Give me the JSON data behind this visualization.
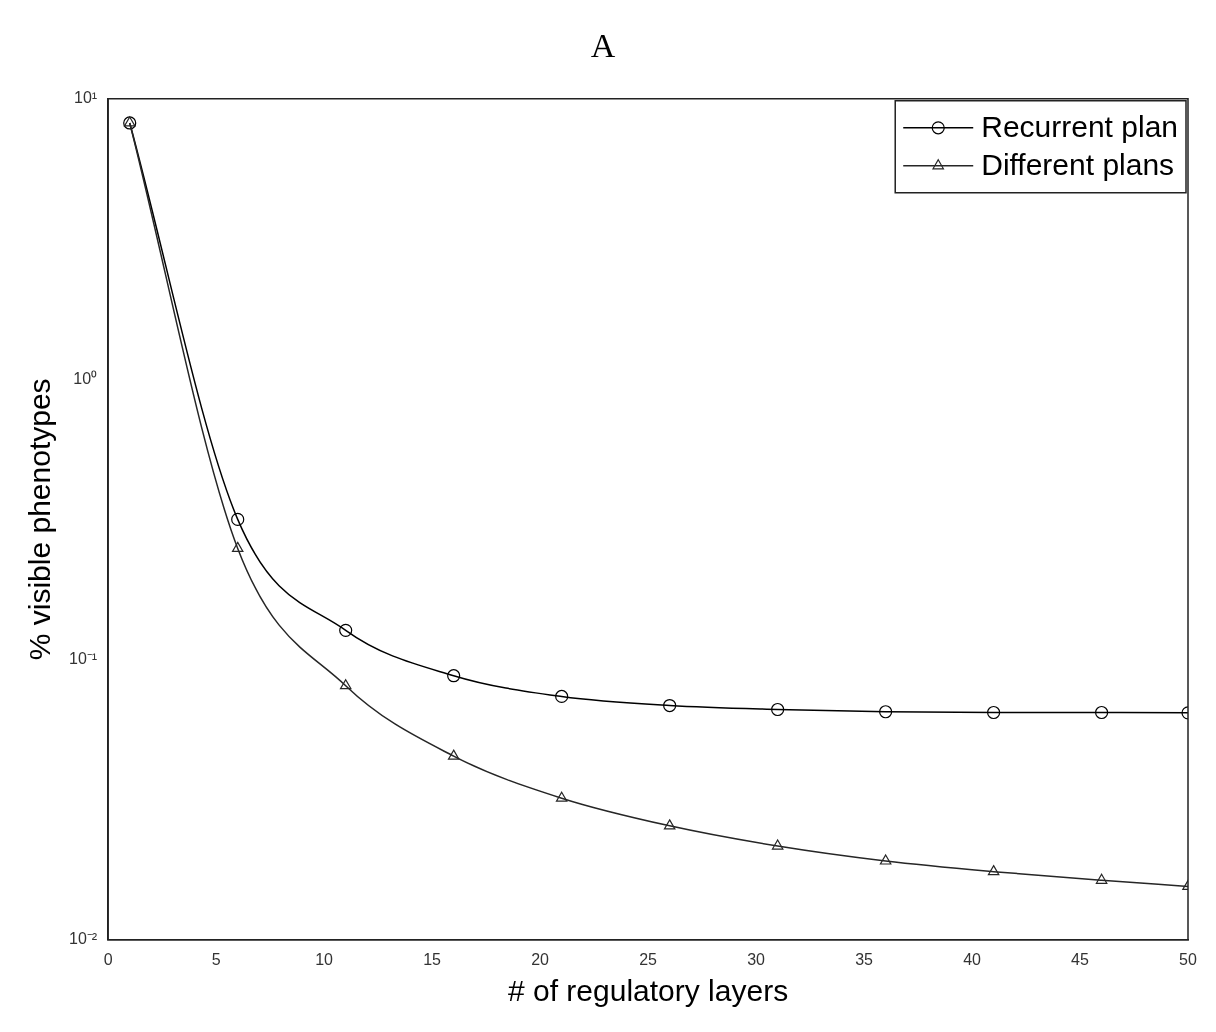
{
  "chart_data": {
    "type": "line",
    "title": "A",
    "xlabel": "# of regulatory layers",
    "ylabel": "% visible phenotypes",
    "x": [
      1,
      6,
      11,
      16,
      21,
      26,
      31,
      36,
      41,
      46,
      50
    ],
    "series": [
      {
        "name": "Recurrent plan",
        "color": "#000000",
        "marker": "circle",
        "values": [
          8.2,
          0.316,
          0.127,
          0.0875,
          0.0738,
          0.0685,
          0.0663,
          0.0651,
          0.0647,
          0.0647,
          0.0645
        ]
      },
      {
        "name": "Different plans",
        "color": "#262626",
        "marker": "triangle",
        "values": [
          8.2,
          0.249,
          0.0806,
          0.0452,
          0.032,
          0.0255,
          0.0216,
          0.0191,
          0.0175,
          0.0163,
          0.0155
        ]
      }
    ],
    "log": "y",
    "xlim": [
      0,
      50
    ],
    "xticks": [
      0,
      5,
      10,
      15,
      20,
      25,
      30,
      35,
      40,
      45,
      50
    ],
    "ylim": [
      0.01,
      10
    ],
    "yticks": [
      {
        "value": 0.01,
        "label": "10⁻²"
      },
      {
        "value": 0.1,
        "label": "10⁻¹"
      },
      {
        "value": 1,
        "label": "10⁰"
      },
      {
        "value": 10,
        "label": "10¹"
      }
    ],
    "grid": false,
    "legend": "top right",
    "line_style": "solid"
  }
}
